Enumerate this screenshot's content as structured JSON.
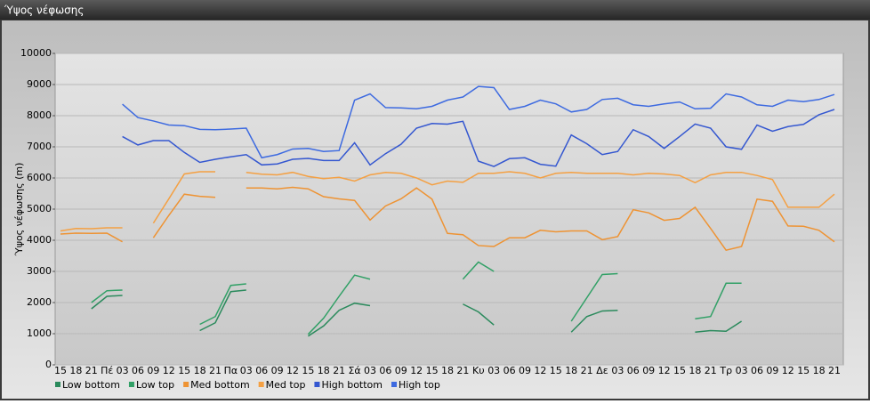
{
  "chart_data": {
    "type": "line",
    "title": "Ύψος νέφωσης",
    "ylabel": "Ύψος νέφωσης (m)",
    "categories": [
      "15",
      "18",
      "21",
      "Πέ",
      "03",
      "06",
      "09",
      "12",
      "15",
      "18",
      "21",
      "Πα",
      "03",
      "06",
      "09",
      "12",
      "15",
      "18",
      "21",
      "Σά",
      "03",
      "06",
      "09",
      "12",
      "15",
      "18",
      "21",
      "Κυ",
      "03",
      "06",
      "09",
      "12",
      "15",
      "18",
      "21",
      "Δε",
      "03",
      "06",
      "09",
      "12",
      "15",
      "18",
      "21",
      "Τρ",
      "03",
      "06",
      "09",
      "12",
      "15",
      "18",
      "21"
    ],
    "ylim": [
      0,
      10000
    ],
    "yticks": [
      0,
      1000,
      2000,
      3000,
      4000,
      5000,
      6000,
      7000,
      8000,
      9000,
      10000
    ],
    "grid": true,
    "series": [
      {
        "name": "Low bottom",
        "color": "#2a8a5c",
        "values": [
          null,
          null,
          1800,
          2200,
          2230,
          null,
          null,
          null,
          null,
          1100,
          1350,
          2350,
          2400,
          null,
          null,
          null,
          920,
          1250,
          1750,
          1980,
          1900,
          null,
          null,
          null,
          null,
          null,
          1950,
          1700,
          1280,
          null,
          null,
          null,
          null,
          1050,
          1550,
          1730,
          1750,
          null,
          null,
          null,
          null,
          1050,
          1100,
          1080,
          1400,
          null,
          null,
          null,
          null,
          null,
          null
        ]
      },
      {
        "name": "Low top",
        "color": "#31a066",
        "values": [
          null,
          null,
          2000,
          2380,
          2400,
          null,
          null,
          null,
          null,
          1300,
          1550,
          2550,
          2600,
          null,
          null,
          null,
          980,
          1500,
          2200,
          2880,
          2750,
          null,
          null,
          null,
          null,
          null,
          2750,
          3300,
          3000,
          null,
          null,
          null,
          null,
          1400,
          2150,
          2900,
          2930,
          null,
          null,
          null,
          null,
          1480,
          1550,
          2620,
          2620,
          null,
          null,
          null,
          null,
          null,
          null
        ]
      },
      {
        "name": "Med bottom",
        "color": "#ee9333",
        "values": [
          4200,
          4230,
          4220,
          4230,
          3950,
          null,
          4080,
          4800,
          5480,
          5410,
          5380,
          null,
          5680,
          5680,
          5650,
          5700,
          5650,
          5400,
          5330,
          5280,
          4650,
          5100,
          5330,
          5680,
          5320,
          4220,
          4180,
          3830,
          3800,
          4080,
          4080,
          4320,
          4270,
          4300,
          4300,
          4020,
          4120,
          4980,
          4880,
          4640,
          4700,
          5060,
          4380,
          3680,
          3800,
          5320,
          5250,
          4460,
          4450,
          4320,
          3950
        ]
      },
      {
        "name": "Med top",
        "color": "#f4a043",
        "values": [
          4300,
          4380,
          4370,
          4400,
          4400,
          null,
          4550,
          5330,
          6130,
          6200,
          6200,
          null,
          6180,
          6120,
          6100,
          6180,
          6050,
          5980,
          6020,
          5900,
          6100,
          6180,
          6150,
          6000,
          5780,
          5900,
          5860,
          6150,
          6150,
          6200,
          6150,
          6000,
          6150,
          6180,
          6150,
          6150,
          6150,
          6100,
          6150,
          6130,
          6080,
          5850,
          6100,
          6180,
          6180,
          6080,
          5950,
          5060,
          5060,
          5060,
          5480
        ]
      },
      {
        "name": "High bottom",
        "color": "#3457d0",
        "values": [
          null,
          null,
          null,
          null,
          7330,
          7060,
          7200,
          7200,
          6820,
          6500,
          6600,
          6680,
          6750,
          6420,
          6450,
          6600,
          6630,
          6560,
          6560,
          7130,
          6420,
          6780,
          7080,
          7600,
          7750,
          7730,
          7820,
          6540,
          6370,
          6620,
          6650,
          6440,
          6380,
          7380,
          7100,
          6750,
          6850,
          7550,
          7330,
          6950,
          7330,
          7730,
          7600,
          7000,
          6920,
          7700,
          7500,
          7650,
          7720,
          8030,
          8200
        ]
      },
      {
        "name": "High top",
        "color": "#3d6ae0",
        "values": [
          null,
          null,
          null,
          null,
          8370,
          7940,
          7830,
          7700,
          7680,
          7560,
          7550,
          7570,
          7600,
          6650,
          6750,
          6930,
          6950,
          6850,
          6880,
          8500,
          8700,
          8260,
          8250,
          8220,
          8300,
          8500,
          8600,
          8940,
          8900,
          8200,
          8300,
          8500,
          8380,
          8120,
          8200,
          8520,
          8560,
          8350,
          8300,
          8380,
          8440,
          8220,
          8240,
          8700,
          8600,
          8350,
          8300,
          8500,
          8450,
          8520,
          8680
        ]
      }
    ]
  }
}
